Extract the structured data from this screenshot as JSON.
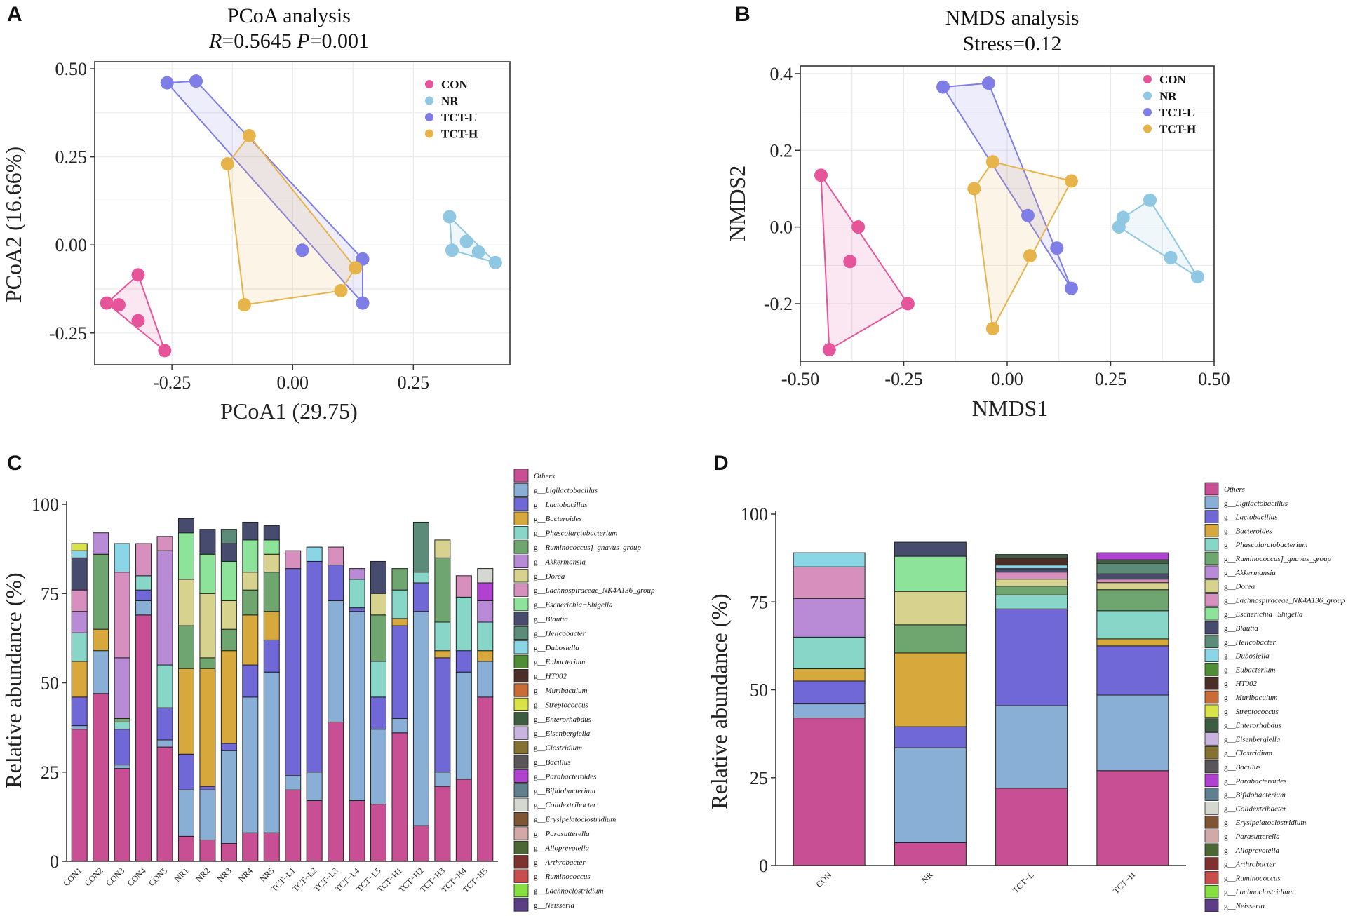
{
  "colors": {
    "CON": "#e6559a",
    "NR": "#90c7e2",
    "TCT-L": "#7f7ee6",
    "TCT-H": "#e7b34b"
  },
  "genus_colors": [
    "#c94f95",
    "#8aafd6",
    "#7068d7",
    "#d7a83c",
    "#88d6c8",
    "#6fa56f",
    "#b98ad6",
    "#d7d38e",
    "#d78fbd",
    "#8ee39a",
    "#474b6e",
    "#5d8b79",
    "#8ad5e6",
    "#4f8e35",
    "#4b2f26",
    "#c96c35",
    "#d9e246",
    "#3c5d3f",
    "#c9b4e0",
    "#857233",
    "#5a5558",
    "#b142d1",
    "#607f8f",
    "#d4d8d0",
    "#805534",
    "#d3a9a7",
    "#4c6634",
    "#7e3230",
    "#c84e4e",
    "#86e040",
    "#5b3e86"
  ],
  "legend_labels": [
    "Others",
    "g__Ligilactobacillus",
    "g__Lactobacillus",
    "g__Bacteroides",
    "g__Phascolarctobacterium",
    "g__Ruminococcus]_gnavus_group",
    "g__Akkermansia",
    "g__Dorea",
    "g__Lachnospiraceae_NK4A136_group",
    "g__Escherichia−Shigella",
    "g__Blautia",
    "g__Helicobacter",
    "g__Dubosiella",
    "g__Eubacterium",
    "g__HT002",
    "g__Muribaculum",
    "g__Streptococcus",
    "g__Enterorhabdus",
    "g__Eisenbergiella",
    "g__Clostridium",
    "g__Bacillus",
    "g__Parabacteroides",
    "g__Bifidobacterium",
    "g__Colidextribacter",
    "g__Erysipelatoclostridium",
    "g__Parasutterella",
    "g__Alloprevotella",
    "g__Arthrobacter",
    "g__Ruminococcus",
    "g__Lachnoclostridium",
    "g__Neisseria"
  ],
  "chart_data": [
    {
      "panel": "A",
      "type": "scatter",
      "title": "PCoA analysis",
      "subtitle": {
        "r_label": "R",
        "r_value": "=0.5645 ",
        "p_label": "P",
        "p_value": "=0.001"
      },
      "xlabel": "PCoA1 (29.75)",
      "ylabel": "PCoA2 (16.66%)",
      "xlim": [
        -0.41,
        0.45
      ],
      "ylim": [
        -0.34,
        0.52
      ],
      "xticks": [
        -0.25,
        0.0,
        0.25
      ],
      "xtick_labels": [
        "-0.25",
        "0.00",
        "0.25"
      ],
      "yticks": [
        -0.25,
        0.0,
        0.25,
        0.5
      ],
      "ytick_labels": [
        "-0.25",
        "0.00",
        "0.25",
        "0.50"
      ],
      "grid": true,
      "legend": "top-right",
      "series": [
        {
          "name": "CON",
          "points": [
            [
              -0.32,
              -0.085
            ],
            [
              -0.385,
              -0.165
            ],
            [
              -0.36,
              -0.17
            ],
            [
              -0.32,
              -0.215
            ],
            [
              -0.265,
              -0.3
            ]
          ],
          "hull": [
            [
              -0.32,
              -0.085
            ],
            [
              -0.385,
              -0.165
            ],
            [
              -0.265,
              -0.3
            ]
          ]
        },
        {
          "name": "NR",
          "points": [
            [
              0.325,
              0.08
            ],
            [
              0.33,
              -0.015
            ],
            [
              0.36,
              0.01
            ],
            [
              0.385,
              -0.02
            ],
            [
              0.42,
              -0.05
            ]
          ],
          "hull": [
            [
              0.325,
              0.08
            ],
            [
              0.42,
              -0.05
            ],
            [
              0.33,
              -0.015
            ]
          ]
        },
        {
          "name": "TCT-L",
          "points": [
            [
              -0.26,
              0.46
            ],
            [
              -0.2,
              0.465
            ],
            [
              0.02,
              -0.015
            ],
            [
              0.145,
              -0.04
            ],
            [
              0.145,
              -0.165
            ]
          ],
          "hull": [
            [
              -0.26,
              0.46
            ],
            [
              -0.2,
              0.465
            ],
            [
              0.145,
              -0.04
            ],
            [
              0.145,
              -0.165
            ]
          ]
        },
        {
          "name": "TCT-H",
          "points": [
            [
              -0.09,
              0.31
            ],
            [
              -0.135,
              0.23
            ],
            [
              -0.1,
              -0.17
            ],
            [
              0.1,
              -0.13
            ],
            [
              0.13,
              -0.065
            ]
          ],
          "hull": [
            [
              -0.09,
              0.31
            ],
            [
              0.13,
              -0.065
            ],
            [
              0.1,
              -0.13
            ],
            [
              -0.1,
              -0.17
            ],
            [
              -0.135,
              0.23
            ]
          ]
        }
      ]
    },
    {
      "panel": "B",
      "type": "scatter",
      "title": "NMDS analysis",
      "subtitle": "Stress=0.12",
      "xlabel": "NMDS1",
      "ylabel": "NMDS2",
      "xlim": [
        -0.5,
        0.5
      ],
      "ylim": [
        -0.35,
        0.42
      ],
      "xticks": [
        -0.5,
        -0.25,
        0.0,
        0.25,
        0.5
      ],
      "xtick_labels": [
        "-0.50",
        "-0.25",
        "0.00",
        "0.25",
        "0.50"
      ],
      "yticks": [
        -0.2,
        0.0,
        0.2,
        0.4
      ],
      "ytick_labels": [
        "-0.2",
        "0.0",
        "0.2",
        "0.4"
      ],
      "grid": true,
      "legend": "top-right",
      "series": [
        {
          "name": "CON",
          "points": [
            [
              -0.45,
              0.135
            ],
            [
              -0.36,
              0.0
            ],
            [
              -0.38,
              -0.09
            ],
            [
              -0.24,
              -0.2
            ],
            [
              -0.43,
              -0.32
            ]
          ],
          "hull": [
            [
              -0.45,
              0.135
            ],
            [
              -0.24,
              -0.2
            ],
            [
              -0.43,
              -0.32
            ]
          ]
        },
        {
          "name": "NR",
          "points": [
            [
              0.345,
              0.07
            ],
            [
              0.28,
              0.025
            ],
            [
              0.27,
              0.0
            ],
            [
              0.395,
              -0.08
            ],
            [
              0.46,
              -0.13
            ]
          ],
          "hull": [
            [
              0.345,
              0.07
            ],
            [
              0.46,
              -0.13
            ],
            [
              0.27,
              0.0
            ],
            [
              0.28,
              0.025
            ]
          ]
        },
        {
          "name": "TCT-L",
          "points": [
            [
              -0.155,
              0.365
            ],
            [
              -0.045,
              0.375
            ],
            [
              0.05,
              0.03
            ],
            [
              0.12,
              -0.055
            ],
            [
              0.155,
              -0.16
            ]
          ],
          "hull": [
            [
              -0.155,
              0.365
            ],
            [
              -0.045,
              0.375
            ],
            [
              0.155,
              -0.16
            ]
          ]
        },
        {
          "name": "TCT-H",
          "points": [
            [
              -0.035,
              0.17
            ],
            [
              -0.08,
              0.1
            ],
            [
              0.155,
              0.12
            ],
            [
              0.055,
              -0.075
            ],
            [
              -0.035,
              -0.265
            ]
          ],
          "hull": [
            [
              -0.035,
              0.17
            ],
            [
              0.155,
              0.12
            ],
            [
              -0.035,
              -0.265
            ],
            [
              -0.08,
              0.1
            ]
          ]
        }
      ]
    },
    {
      "panel": "C",
      "type": "bar",
      "stacked": true,
      "ylabel": "Relative abundance (%)",
      "ylim": [
        0,
        100
      ],
      "yticks": [
        0,
        25,
        50,
        75,
        100
      ],
      "legend": "right",
      "categories": [
        "CON1",
        "CON2",
        "CON3",
        "CON4",
        "CON5",
        "NR1",
        "NR2",
        "NR3",
        "NR4",
        "NR5",
        "TCT−L1",
        "TCT−L2",
        "TCT−L3",
        "TCT−L4",
        "TCT−L5",
        "TCT−H1",
        "TCT−H2",
        "TCT−H3",
        "TCT−H4",
        "TCT−H5"
      ],
      "values": [
        [
          37,
          1,
          8,
          10,
          8,
          0,
          6,
          0,
          6,
          0,
          9,
          0,
          2,
          0,
          0,
          0,
          2,
          0,
          0,
          0,
          0,
          0,
          0,
          0,
          0,
          0,
          0,
          0,
          0,
          0,
          0
        ],
        [
          47,
          12,
          0,
          6,
          0,
          21,
          6,
          0,
          0,
          0,
          0,
          0,
          0,
          0,
          0,
          0,
          0,
          0,
          0,
          0,
          0,
          0,
          0,
          0,
          0,
          0,
          0,
          0,
          0,
          0,
          0
        ],
        [
          26,
          1,
          10,
          0,
          2,
          1,
          17,
          0,
          24,
          0,
          0,
          0,
          8,
          0,
          0,
          0,
          0,
          0,
          0,
          0,
          0,
          0,
          0,
          0,
          0,
          0,
          0,
          0,
          0,
          0,
          0
        ],
        [
          69,
          4,
          3,
          0,
          4,
          0,
          0,
          0,
          9,
          0,
          0,
          0,
          0,
          0,
          0,
          0,
          0,
          0,
          0,
          0,
          0,
          0,
          0,
          0,
          0,
          0,
          0,
          0,
          0,
          0,
          0
        ],
        [
          32,
          2,
          9,
          0,
          12,
          0,
          32,
          0,
          4,
          0,
          0,
          0,
          0,
          0,
          0,
          0,
          0,
          0,
          0,
          0,
          0,
          0,
          0,
          0,
          0,
          0,
          0,
          0,
          0,
          0,
          0
        ],
        [
          7,
          13,
          10,
          24,
          0,
          12,
          0,
          13,
          0,
          13,
          4,
          0,
          0,
          0,
          0,
          0,
          0,
          0,
          0,
          0,
          0,
          0,
          0,
          0,
          0,
          0,
          0,
          0,
          0,
          0,
          0
        ],
        [
          6,
          14,
          1,
          33,
          0,
          3,
          0,
          18,
          0,
          11,
          7,
          0,
          0,
          0,
          0,
          0,
          0,
          0,
          0,
          0,
          0,
          0,
          0,
          0,
          0,
          0,
          0,
          0,
          0,
          0,
          0
        ],
        [
          5,
          26,
          2,
          26,
          0,
          6,
          0,
          8,
          0,
          11,
          5,
          4,
          0,
          0,
          0,
          0,
          0,
          0,
          0,
          0,
          0,
          0,
          0,
          0,
          0,
          0,
          0,
          0,
          0,
          0,
          0
        ],
        [
          8,
          38,
          9,
          14,
          0,
          7,
          0,
          5,
          0,
          9,
          5,
          0,
          0,
          0,
          0,
          0,
          0,
          0,
          0,
          0,
          0,
          0,
          0,
          0,
          0,
          0,
          0,
          0,
          0,
          0,
          0
        ],
        [
          8,
          45,
          9,
          8,
          0,
          11,
          0,
          5,
          0,
          4,
          4,
          0,
          0,
          0,
          0,
          0,
          0,
          0,
          0,
          0,
          0,
          0,
          0,
          0,
          0,
          0,
          0,
          0,
          0,
          0,
          0
        ],
        [
          20,
          4,
          58,
          0,
          0,
          0,
          0,
          0,
          5,
          0,
          0,
          0,
          0,
          0,
          0,
          0,
          0,
          0,
          0,
          0,
          0,
          0,
          0,
          0,
          0,
          0,
          0,
          0,
          0,
          0,
          0
        ],
        [
          17,
          8,
          59,
          0,
          0,
          0,
          0,
          0,
          0,
          0,
          0,
          0,
          4,
          0,
          0,
          0,
          0,
          0,
          0,
          0,
          0,
          0,
          0,
          0,
          0,
          0,
          0,
          0,
          0,
          0,
          0
        ],
        [
          39,
          34,
          10,
          0,
          0,
          0,
          0,
          0,
          5,
          0,
          0,
          0,
          0,
          0,
          0,
          0,
          0,
          0,
          0,
          0,
          0,
          0,
          0,
          0,
          0,
          0,
          0,
          0,
          0,
          0,
          0
        ],
        [
          17,
          53,
          1,
          0,
          8,
          0,
          3,
          0,
          0,
          0,
          0,
          0,
          0,
          0,
          0,
          0,
          0,
          0,
          0,
          0,
          0,
          0,
          0,
          0,
          0,
          0,
          0,
          0,
          0,
          0,
          0
        ],
        [
          16,
          21,
          9,
          0,
          10,
          13,
          0,
          6,
          0,
          0,
          9,
          0,
          0,
          0,
          0,
          0,
          0,
          0,
          0,
          0,
          0,
          0,
          0,
          0,
          0,
          0,
          0,
          0,
          0,
          0,
          0
        ],
        [
          36,
          4,
          26,
          2,
          8,
          6,
          0,
          0,
          0,
          0,
          0,
          0,
          0,
          0,
          0,
          0,
          0,
          0,
          0,
          0,
          0,
          0,
          0,
          0,
          0,
          0,
          0,
          0,
          0,
          0,
          0
        ],
        [
          10,
          60,
          8,
          0,
          3,
          0,
          0,
          0,
          0,
          0,
          0,
          14,
          0,
          0,
          0,
          0,
          0,
          0,
          0,
          0,
          0,
          0,
          0,
          0,
          0,
          0,
          0,
          0,
          0,
          0,
          0
        ],
        [
          21,
          4,
          32,
          2,
          8,
          18,
          0,
          5,
          0,
          0,
          0,
          0,
          0,
          0,
          0,
          0,
          0,
          0,
          0,
          0,
          0,
          0,
          0,
          0,
          0,
          0,
          0,
          0,
          0,
          0,
          0
        ],
        [
          23,
          30,
          6,
          0,
          15,
          0,
          0,
          0,
          6,
          0,
          0,
          0,
          0,
          0,
          0,
          0,
          0,
          0,
          0,
          0,
          0,
          0,
          0,
          0,
          0,
          0,
          0,
          0,
          0,
          0,
          0
        ],
        [
          46,
          10,
          0,
          3,
          8,
          0,
          6,
          0,
          0,
          0,
          0,
          0,
          0,
          0,
          0,
          0,
          0,
          0,
          0,
          0,
          0,
          5,
          0,
          4,
          0,
          0,
          0,
          0,
          0,
          0,
          0
        ]
      ]
    },
    {
      "panel": "D",
      "type": "bar",
      "stacked": true,
      "ylabel": "Relative abundance (%)",
      "ylim": [
        0,
        100
      ],
      "yticks": [
        0,
        25,
        50,
        75,
        100
      ],
      "legend": "right",
      "categories": [
        "CON",
        "NR",
        "TCT−L",
        "TCT−H"
      ],
      "values": [
        [
          42,
          4,
          6.5,
          3.5,
          9,
          0,
          11,
          0,
          9,
          0,
          0,
          0,
          4,
          0,
          0,
          0,
          0,
          0,
          0,
          0,
          0,
          0,
          0,
          0,
          0,
          0,
          0,
          0,
          0,
          0,
          0
        ],
        [
          6.5,
          27,
          6,
          21,
          0,
          8,
          0,
          9.5,
          0,
          10,
          4,
          0,
          0,
          0,
          0,
          0,
          0,
          0,
          0,
          0,
          0,
          0,
          0,
          0,
          0,
          0,
          0,
          0,
          0,
          0,
          0
        ],
        [
          22,
          23.5,
          27.5,
          0,
          4,
          2.5,
          0,
          2,
          2,
          0,
          1,
          0,
          1,
          0,
          2,
          0,
          0,
          1,
          0,
          0,
          0,
          0,
          0,
          0,
          0,
          0,
          0,
          0,
          0,
          0,
          0
        ],
        [
          27,
          21.5,
          14,
          2,
          8,
          6,
          0,
          2,
          1,
          0,
          1.5,
          3,
          0,
          0,
          0,
          0,
          0,
          1,
          0,
          0,
          0,
          2,
          0,
          0,
          0,
          0,
          0,
          0,
          0,
          0,
          0
        ]
      ]
    }
  ]
}
